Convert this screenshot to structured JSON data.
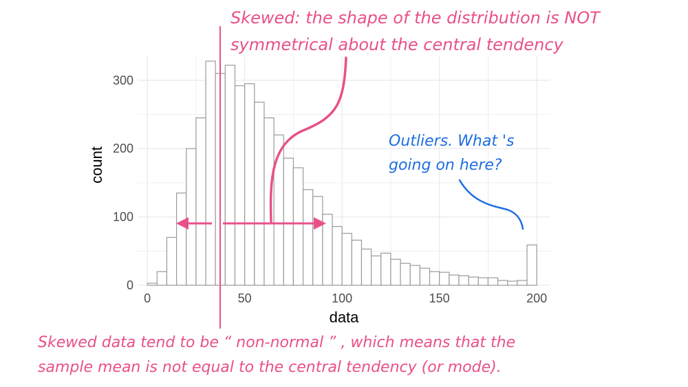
{
  "chart_data": {
    "type": "bar",
    "subtype": "histogram",
    "xlabel": "data",
    "ylabel": "count",
    "xlim": [
      -5,
      207
    ],
    "ylim": [
      0,
      335
    ],
    "x_ticks": [
      0,
      50,
      100,
      150,
      200
    ],
    "y_ticks": [
      0,
      100,
      200,
      300
    ],
    "grid": true,
    "bin_width": 5,
    "bin_starts": [
      0,
      5,
      10,
      15,
      20,
      25,
      30,
      35,
      40,
      45,
      50,
      55,
      60,
      65,
      70,
      75,
      80,
      85,
      90,
      95,
      100,
      105,
      110,
      115,
      120,
      125,
      130,
      135,
      140,
      145,
      150,
      155,
      160,
      165,
      170,
      175,
      180,
      185,
      190,
      195
    ],
    "values": [
      3,
      20,
      70,
      135,
      200,
      245,
      328,
      310,
      322,
      292,
      295,
      268,
      245,
      220,
      186,
      172,
      140,
      130,
      104,
      86,
      76,
      66,
      53,
      43,
      47,
      38,
      32,
      29,
      25,
      20,
      19,
      15,
      14,
      12,
      11,
      11,
      7,
      6,
      7,
      59
    ],
    "bar_fill": "#ffffff",
    "bar_stroke": "#9a9a9a",
    "annotation_color": "#e8508a",
    "outlier_annotation_color": "#1e6ee0",
    "annotations": {
      "skew_line1": "Skewed: the shape of the distribution is NOT",
      "skew_line2": "symmetrical about the central tendency",
      "outliers_line1": "Outliers. What 's",
      "outliers_line2": "going on here?",
      "bottom_line1": "Skewed data tend to be “ non-normal ” , which means that the",
      "bottom_line2": "sample mean is not equal to the central tendency (or mode)."
    }
  }
}
